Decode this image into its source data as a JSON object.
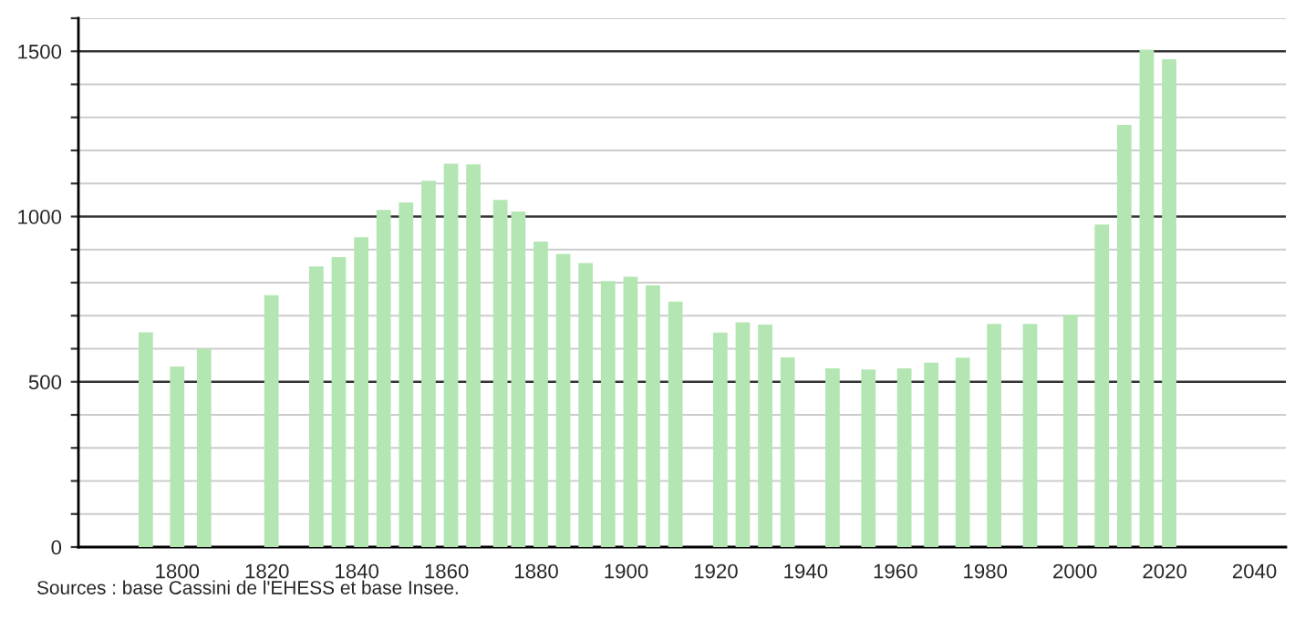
{
  "chart_data": {
    "type": "bar",
    "x": [
      1793,
      1800,
      1806,
      1821,
      1831,
      1836,
      1841,
      1846,
      1851,
      1856,
      1861,
      1866,
      1872,
      1876,
      1881,
      1886,
      1891,
      1896,
      1901,
      1906,
      1911,
      1921,
      1926,
      1931,
      1936,
      1946,
      1954,
      1962,
      1968,
      1975,
      1982,
      1990,
      1999,
      2006,
      2011,
      2016,
      2021
    ],
    "values": [
      650,
      546,
      600,
      762,
      849,
      877,
      937,
      1020,
      1043,
      1108,
      1160,
      1158,
      1050,
      1015,
      924,
      887,
      859,
      805,
      818,
      792,
      743,
      649,
      680,
      673,
      574,
      541,
      537,
      541,
      558,
      573,
      675,
      675,
      703,
      976,
      1277,
      1505,
      1476
    ],
    "color": "#b3e6b3",
    "xlim": [
      1778,
      2047
    ],
    "xticks": [
      1800,
      1820,
      1840,
      1860,
      1880,
      1900,
      1920,
      1940,
      1960,
      1980,
      2000,
      2020,
      2040
    ],
    "ylim": [
      0,
      1600
    ],
    "yticks": [
      0,
      {
        "value": 100,
        "label": null
      },
      {
        "value": 200,
        "label": null
      },
      {
        "value": 300,
        "label": null
      },
      {
        "value": 400,
        "label": null
      },
      500,
      {
        "value": 600,
        "label": null
      },
      {
        "value": 700,
        "label": null
      },
      {
        "value": 800,
        "label": null
      },
      {
        "value": 900,
        "label": null
      },
      1000,
      {
        "value": 1100,
        "label": null
      },
      {
        "value": 1200,
        "label": null
      },
      {
        "value": 1300,
        "label": null
      },
      {
        "value": 1400,
        "label": null
      },
      1500,
      {
        "value": 1600,
        "label": null
      }
    ],
    "grid": "y",
    "annotations": [
      "Sources : base Cassini de l'EHESS et base Insee."
    ]
  }
}
